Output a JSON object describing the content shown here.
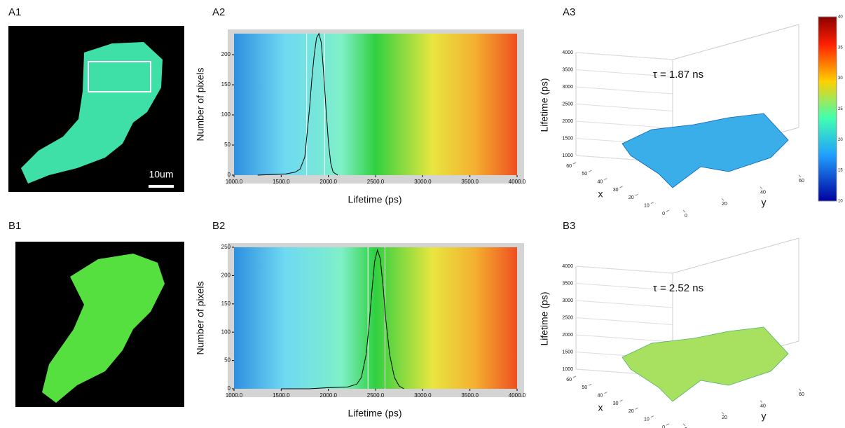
{
  "panels": {
    "labels": [
      "A1",
      "A2",
      "A3",
      "B1",
      "B2",
      "B3"
    ],
    "scale_bar": "10um"
  },
  "chart_data": [
    {
      "type": "line",
      "xlabel": "Lifetime (ps)",
      "ylabel": "Number of pixels",
      "color": "#000000",
      "xlim": [
        1000,
        4000
      ],
      "ylim": [
        0,
        235
      ],
      "xticks": [
        {
          "value": 1000,
          "label": "1000.0"
        },
        {
          "value": 1500,
          "label": "1500.0"
        },
        {
          "value": 2000,
          "label": "2000.0"
        },
        {
          "value": 2500,
          "label": "2500.0"
        },
        {
          "value": 3000,
          "label": "3000.0"
        },
        {
          "value": 3500,
          "label": "3500.0"
        },
        {
          "value": 4000,
          "label": "4000.0"
        }
      ],
      "yticks": [
        0,
        50,
        100,
        150,
        200
      ],
      "cursors": [
        1770,
        1960
      ],
      "x": [
        1250,
        1400,
        1550,
        1650,
        1700,
        1750,
        1775,
        1800,
        1825,
        1850,
        1875,
        1900,
        1925,
        1950,
        1975,
        2000,
        2025,
        2050,
        2100
      ],
      "values": [
        0,
        1,
        2,
        5,
        10,
        30,
        70,
        110,
        160,
        200,
        228,
        235,
        220,
        170,
        110,
        55,
        20,
        5,
        0
      ]
    },
    {
      "type": "surface3d",
      "annotation": "τ = 1.87 ns",
      "zlabel": "Lifetime (ps)",
      "xlabel": "x",
      "ylabel": "y",
      "zlim": [
        1000,
        4000
      ],
      "zticks": [
        1000,
        1500,
        2000,
        2500,
        3000,
        3500,
        4000
      ],
      "xlim": [
        0,
        60
      ],
      "xticks": [
        0,
        10,
        20,
        30,
        40,
        50,
        60
      ],
      "ylim": [
        0,
        60
      ],
      "yticks": [
        0,
        20,
        40,
        60
      ],
      "colorbar_ticks": [
        10,
        15,
        20,
        25,
        30,
        35,
        40
      ],
      "colorbar_lim": [
        10,
        40
      ]
    },
    {
      "type": "line",
      "xlabel": "Lifetime (ps)",
      "ylabel": "Number of pixels",
      "color": "#000000",
      "xlim": [
        1000,
        4000
      ],
      "ylim": [
        0,
        250
      ],
      "xticks": [
        {
          "value": 1000,
          "label": "1000.0"
        },
        {
          "value": 1500,
          "label": "1500.0"
        },
        {
          "value": 2000,
          "label": "2000.0"
        },
        {
          "value": 2500,
          "label": "2500.0"
        },
        {
          "value": 3000,
          "label": "3000.0"
        },
        {
          "value": 3500,
          "label": "3500.0"
        },
        {
          "value": 4000,
          "label": "4000.0"
        }
      ],
      "yticks": [
        0,
        50,
        100,
        150,
        200,
        250
      ],
      "cursors": [
        2420,
        2600
      ],
      "x": [
        1500,
        1800,
        2000,
        2200,
        2300,
        2350,
        2400,
        2430,
        2460,
        2490,
        2520,
        2550,
        2580,
        2610,
        2650,
        2700,
        2750,
        2800
      ],
      "values": [
        0,
        0,
        2,
        3,
        8,
        20,
        60,
        110,
        170,
        225,
        245,
        230,
        180,
        120,
        60,
        20,
        5,
        0
      ]
    },
    {
      "type": "surface3d",
      "annotation": "τ = 2.52 ns",
      "zlabel": "Lifetime (ps)",
      "xlabel": "x",
      "ylabel": "y",
      "zlim": [
        1000,
        4000
      ],
      "zticks": [
        1000,
        1500,
        2000,
        2500,
        3000,
        3500,
        4000
      ],
      "xlim": [
        0,
        60
      ],
      "xticks": [
        0,
        10,
        20,
        30,
        40,
        50,
        60
      ],
      "ylim": [
        0,
        60
      ],
      "yticks": [
        0,
        20,
        40,
        60
      ]
    }
  ]
}
